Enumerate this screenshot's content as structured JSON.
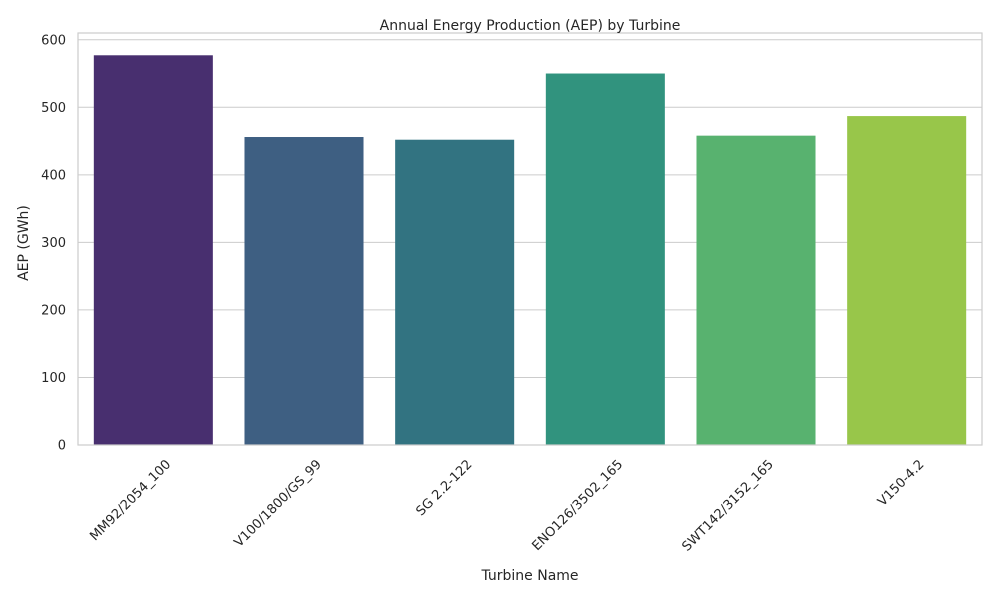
{
  "chart_data": {
    "type": "bar",
    "title": "Annual Energy Production (AEP) by Turbine",
    "xlabel": "Turbine Name",
    "ylabel": "AEP (GWh)",
    "categories": [
      "MM92/2054_100",
      "V100/1800/GS_99",
      "SG 2.2-122",
      "ENO126/3502_165",
      "SWT142/3152_165",
      "V150-4.2"
    ],
    "values": [
      577,
      456,
      452,
      550,
      458,
      487
    ],
    "ylim": [
      0,
      610
    ],
    "yticks": [
      "0",
      "100",
      "200",
      "300",
      "400",
      "500",
      "600"
    ],
    "grid": true,
    "legend": "none",
    "colors": [
      "#482f6f",
      "#3e5f82",
      "#327381",
      "#31937e",
      "#58b26f",
      "#98c64a"
    ],
    "axis_color": "#cccccc",
    "grid_color": "#cccccc"
  }
}
